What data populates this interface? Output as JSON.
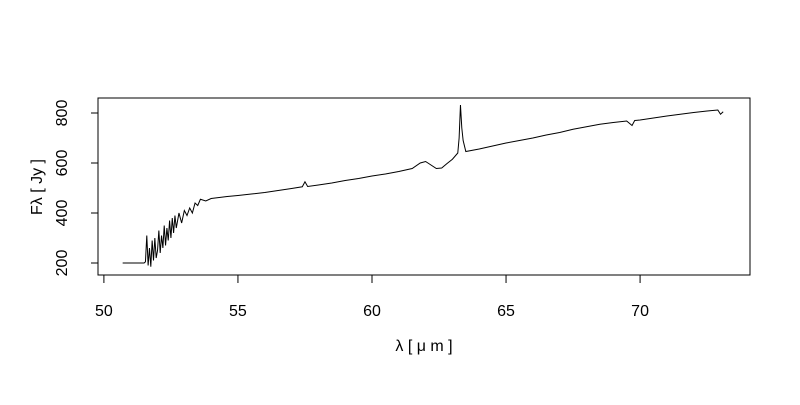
{
  "chart_data": {
    "type": "line",
    "x_label": "λ [ μ m ]",
    "y_label": "Fλ [ Jy ]",
    "xlim": [
      49.78,
      74.1
    ],
    "ylim": [
      152,
      860
    ],
    "xticks": [
      50,
      55,
      60,
      65,
      70
    ],
    "yticks": [
      200,
      400,
      600,
      800
    ],
    "color": "#000000",
    "x": [
      50.7,
      51.5,
      51.55,
      51.6,
      51.65,
      51.7,
      51.75,
      51.8,
      51.85,
      51.9,
      51.95,
      52.0,
      52.05,
      52.1,
      52.15,
      52.2,
      52.25,
      52.3,
      52.35,
      52.4,
      52.45,
      52.5,
      52.55,
      52.6,
      52.65,
      52.7,
      52.8,
      52.9,
      53.0,
      53.1,
      53.2,
      53.3,
      53.4,
      53.5,
      53.6,
      53.8,
      54.0,
      54.3,
      54.6,
      55.0,
      55.5,
      56.0,
      56.5,
      57.0,
      57.4,
      57.5,
      57.6,
      58.0,
      58.5,
      59.0,
      59.5,
      60.0,
      60.5,
      61.0,
      61.5,
      61.8,
      62.0,
      62.2,
      62.4,
      62.6,
      62.8,
      63.0,
      63.2,
      63.25,
      63.3,
      63.35,
      63.4,
      63.5,
      64.0,
      64.5,
      65.0,
      65.5,
      66.0,
      66.5,
      67.0,
      67.5,
      68.0,
      68.5,
      69.0,
      69.5,
      69.7,
      69.8,
      70.0,
      70.5,
      71.0,
      71.5,
      72.0,
      72.5,
      72.9,
      73.0,
      73.1
    ],
    "values": [
      200,
      200,
      205,
      310,
      190,
      260,
      185,
      290,
      210,
      300,
      220,
      250,
      330,
      240,
      310,
      260,
      350,
      270,
      340,
      290,
      370,
      300,
      380,
      320,
      390,
      340,
      400,
      360,
      410,
      390,
      420,
      400,
      440,
      430,
      455,
      448,
      458,
      462,
      466,
      470,
      476,
      482,
      490,
      498,
      505,
      525,
      506,
      512,
      520,
      530,
      538,
      548,
      556,
      566,
      578,
      600,
      606,
      592,
      578,
      580,
      598,
      615,
      640,
      700,
      832,
      740,
      690,
      646,
      656,
      668,
      680,
      690,
      700,
      712,
      722,
      735,
      745,
      755,
      762,
      768,
      750,
      770,
      772,
      780,
      788,
      795,
      802,
      808,
      812,
      795,
      805
    ]
  }
}
